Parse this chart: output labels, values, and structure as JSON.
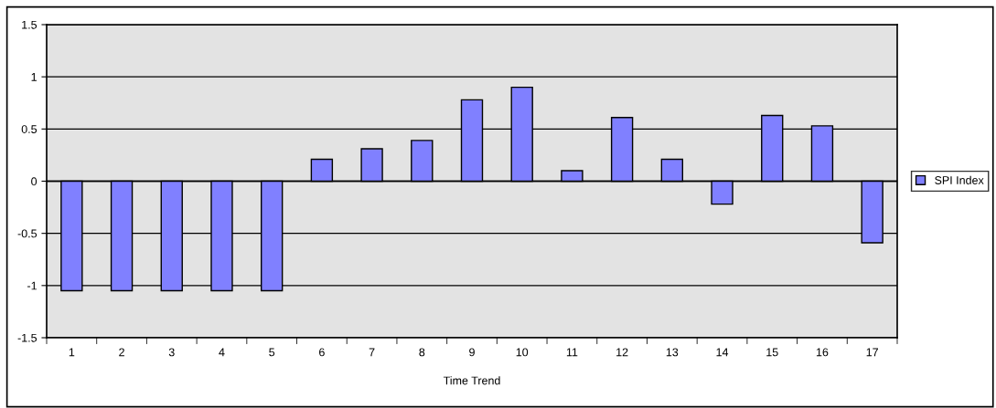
{
  "chart_data": {
    "type": "bar",
    "xlabel": "Time Trend",
    "categories": [
      "1",
      "2",
      "3",
      "4",
      "5",
      "6",
      "7",
      "8",
      "9",
      "10",
      "11",
      "12",
      "13",
      "14",
      "15",
      "16",
      "17"
    ],
    "series": [
      {
        "name": "SPI Index",
        "color": "#8080ff",
        "values": [
          -1.05,
          -1.05,
          -1.05,
          -1.05,
          -1.05,
          0.21,
          0.31,
          0.39,
          0.78,
          0.9,
          0.1,
          0.61,
          0.21,
          -0.22,
          0.63,
          0.53,
          -0.59
        ]
      }
    ],
    "ylim": [
      -1.5,
      1.5
    ],
    "yticks": [
      -1.5,
      -1,
      -0.5,
      0,
      0.5,
      1,
      1.5
    ],
    "grid": "y",
    "legend": "right"
  }
}
